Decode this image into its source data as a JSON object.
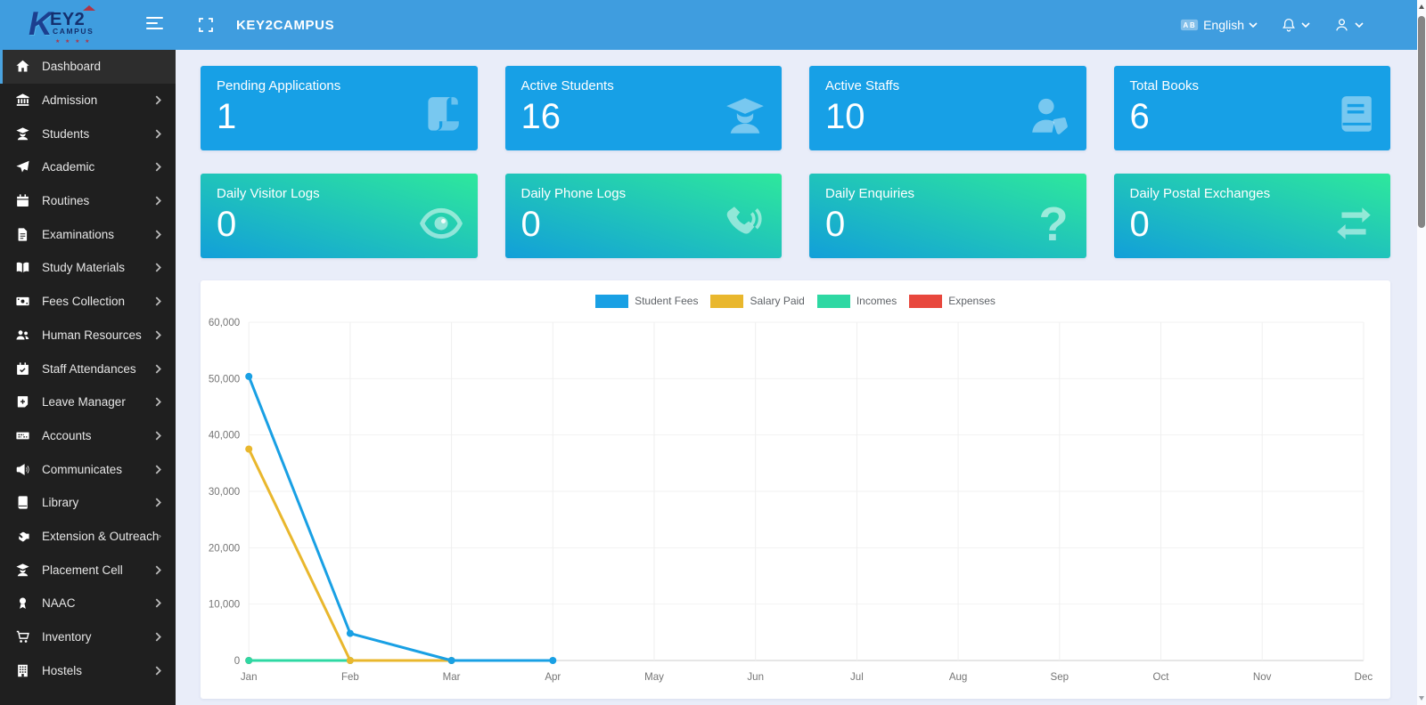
{
  "header": {
    "brand": {
      "k": "K",
      "line1": "EY2",
      "line2": "CAMPUS",
      "dots": "★ ★ ★ ★"
    },
    "title": "KEY2CAMPUS",
    "language": "English"
  },
  "sidebar": {
    "items": [
      {
        "label": "Dashboard",
        "icon": "home-icon",
        "active": true,
        "has_submenu": false
      },
      {
        "label": "Admission",
        "icon": "bank-icon",
        "active": false,
        "has_submenu": true
      },
      {
        "label": "Students",
        "icon": "user-graduate-icon",
        "active": false,
        "has_submenu": true
      },
      {
        "label": "Academic",
        "icon": "paper-plane-icon",
        "active": false,
        "has_submenu": true
      },
      {
        "label": "Routines",
        "icon": "calendar-icon",
        "active": false,
        "has_submenu": true
      },
      {
        "label": "Examinations",
        "icon": "file-icon",
        "active": false,
        "has_submenu": true
      },
      {
        "label": "Study Materials",
        "icon": "book-open-icon",
        "active": false,
        "has_submenu": true
      },
      {
        "label": "Fees Collection",
        "icon": "money-bill-icon",
        "active": false,
        "has_submenu": true
      },
      {
        "label": "Human Resources",
        "icon": "users-icon",
        "active": false,
        "has_submenu": true
      },
      {
        "label": "Staff Attendances",
        "icon": "calendar-check-icon",
        "active": false,
        "has_submenu": true
      },
      {
        "label": "Leave Manager",
        "icon": "note-plus-icon",
        "active": false,
        "has_submenu": true
      },
      {
        "label": "Accounts",
        "icon": "money-check-icon",
        "active": false,
        "has_submenu": true
      },
      {
        "label": "Communicates",
        "icon": "bullhorn-icon",
        "active": false,
        "has_submenu": true
      },
      {
        "label": "Library",
        "icon": "book-icon",
        "active": false,
        "has_submenu": true
      },
      {
        "label": "Extension & Outreach",
        "icon": "handshake-icon",
        "active": false,
        "has_submenu": true
      },
      {
        "label": "Placement Cell",
        "icon": "user-graduate-icon",
        "active": false,
        "has_submenu": true
      },
      {
        "label": "NAAC",
        "icon": "award-icon",
        "active": false,
        "has_submenu": true
      },
      {
        "label": "Inventory",
        "icon": "cart-icon",
        "active": false,
        "has_submenu": true
      },
      {
        "label": "Hostels",
        "icon": "building-icon",
        "active": false,
        "has_submenu": true
      }
    ]
  },
  "stat_cards": [
    {
      "title": "Pending Applications",
      "value": "1",
      "icon": "scroll-icon",
      "variant": "blue"
    },
    {
      "title": "Active Students",
      "value": "16",
      "icon": "user-graduate-icon",
      "variant": "blue"
    },
    {
      "title": "Active Staffs",
      "value": "10",
      "icon": "user-tag-icon",
      "variant": "blue"
    },
    {
      "title": "Total Books",
      "value": "6",
      "icon": "book-icon",
      "variant": "blue"
    },
    {
      "title": "Daily Visitor Logs",
      "value": "0",
      "icon": "eye-icon",
      "variant": "green"
    },
    {
      "title": "Daily Phone Logs",
      "value": "0",
      "icon": "phone-volume-icon",
      "variant": "green"
    },
    {
      "title": "Daily Enquiries",
      "value": "0",
      "icon": "question-icon",
      "variant": "green"
    },
    {
      "title": "Daily Postal Exchanges",
      "value": "0",
      "icon": "exchange-icon",
      "variant": "green"
    }
  ],
  "chart_data": {
    "type": "line",
    "x": [
      "Jan",
      "Feb",
      "Mar",
      "Apr",
      "May",
      "Jun",
      "Jul",
      "Aug",
      "Sep",
      "Oct",
      "Nov",
      "Dec"
    ],
    "series": [
      {
        "name": "Student Fees",
        "color": "#19a0e4",
        "values": [
          50380,
          4800,
          0,
          0
        ]
      },
      {
        "name": "Salary Paid",
        "color": "#e9b72d",
        "values": [
          37500,
          0,
          0
        ]
      },
      {
        "name": "Incomes",
        "color": "#2ed8a3",
        "values": [
          0,
          0
        ]
      },
      {
        "name": "Expenses",
        "color": "#e8473d",
        "values": [
          0
        ]
      }
    ],
    "ylim": [
      0,
      60000
    ],
    "ytick_step": 10000,
    "legend_position": "top",
    "grid": true
  },
  "colors": {
    "topbar": "#3f9ddf",
    "sidebar_bg": "#1f1f1f",
    "sidebar_active_bg": "#2d2d2d",
    "sidebar_accent": "#4aa3df",
    "content_bg": "#e9edf9",
    "card_blue": "#17a0e6",
    "card_green_start": "#129fd9",
    "card_green_end": "#2ee89c"
  }
}
